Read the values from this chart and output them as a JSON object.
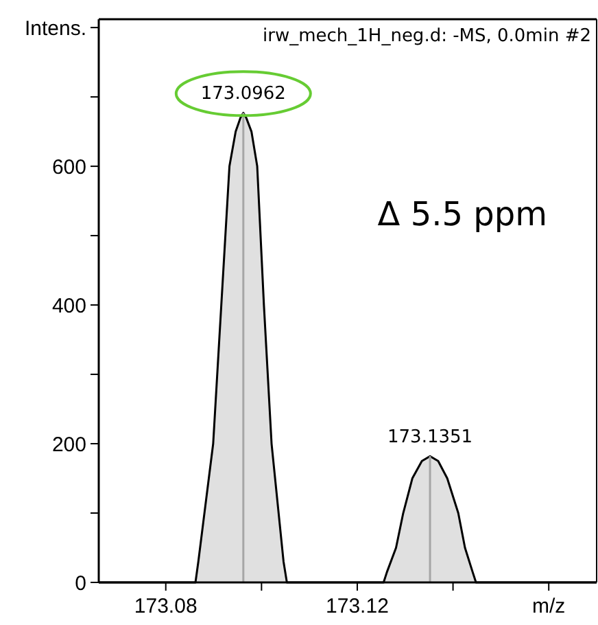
{
  "chart_data": {
    "type": "area",
    "title": "irw_mech_1H_neg.d: -MS, 0.0min #2",
    "xlabel": "m/z",
    "ylabel": "Intens.",
    "xlim": [
      173.066,
      173.17
    ],
    "ylim": [
      0,
      812
    ],
    "xticks": [
      173.08,
      {
        "value": 173.1,
        "label": null
      },
      173.12,
      {
        "value": 173.14,
        "label": null
      },
      {
        "value": 173.16,
        "label": null
      }
    ],
    "yticks": [
      0,
      {
        "value": 100,
        "label": null
      },
      200,
      {
        "value": 300,
        "label": null
      },
      400,
      {
        "value": 500,
        "label": null
      },
      600,
      {
        "value": 700,
        "label": null
      },
      {
        "value": 800,
        "label": null
      }
    ],
    "series": [
      {
        "color": "#e0e0e0",
        "x": [
          173.066,
          173.0862,
          173.0868,
          173.0899,
          173.0916,
          173.0933,
          173.0946,
          173.0956,
          173.0962,
          173.0968,
          173.0979,
          173.0991,
          173.1005,
          173.1021,
          173.1046,
          173.1053,
          173.1255,
          173.1262,
          173.1281,
          173.1296,
          173.1315,
          173.1335,
          173.1352,
          173.1369,
          173.1388,
          173.1411,
          173.1425,
          173.1441,
          173.1448,
          173.17
        ],
        "values": [
          0,
          0,
          30,
          200,
          400,
          600,
          650,
          670,
          677,
          670,
          650,
          600,
          400,
          200,
          30,
          0,
          0,
          15,
          50,
          100,
          150,
          175,
          182,
          175,
          150,
          100,
          50,
          15,
          0,
          0
        ]
      },
      {
        "type": "bar",
        "color": "#a6a6a6",
        "x": [
          173.0962,
          173.1352
        ],
        "values": [
          677,
          182
        ]
      }
    ],
    "annotations": [
      {
        "text": "173.0962",
        "x": 173.0962,
        "y": 677
      },
      {
        "text": "173.1351",
        "x": 173.1352,
        "y": 182
      },
      "Δ 5.5 ppm"
    ],
    "grid": false
  }
}
